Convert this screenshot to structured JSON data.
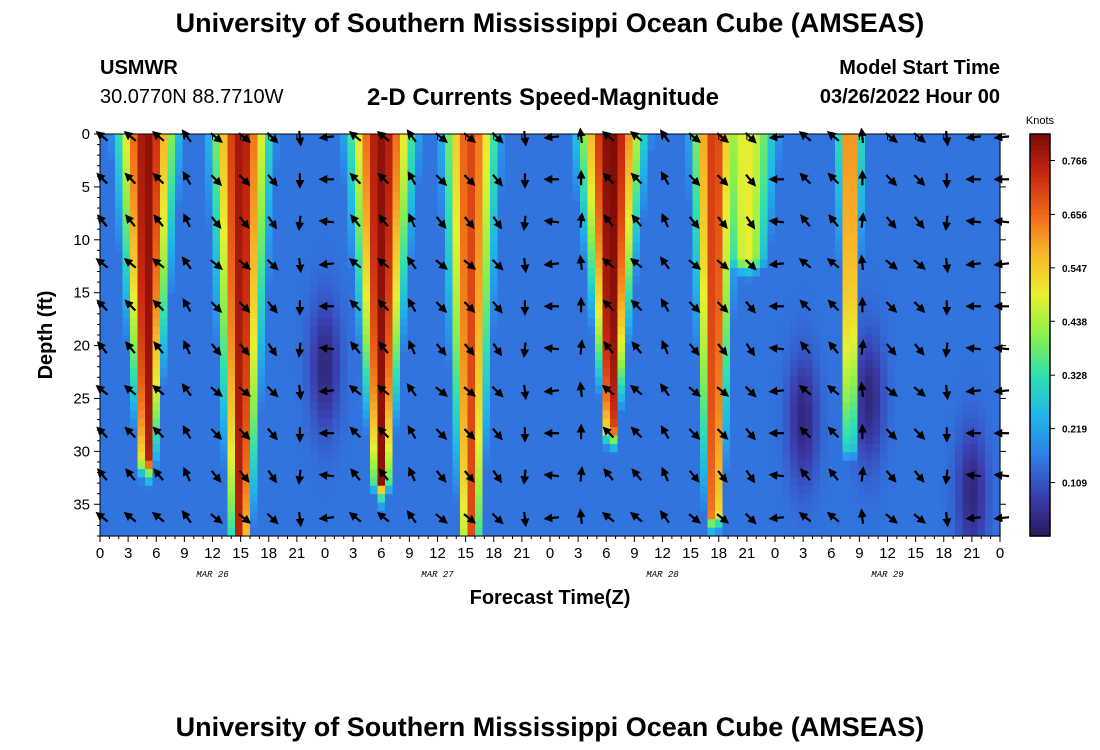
{
  "page": {
    "title": "University of Southern Mississippi Ocean Cube (AMSEAS)",
    "footer_title": "University of Southern Mississippi Ocean Cube (AMSEAS)",
    "station": "USMWR",
    "coordinates": "30.0770N  88.7710W",
    "subtitle": "2-D Currents Speed-Magnitude",
    "model_start_label": "Model Start Time",
    "model_start_value": "03/26/2022 Hour 00"
  },
  "chart_data": {
    "type": "heatmap",
    "title": "2-D Currents Speed-Magnitude",
    "xlabel": "Forecast Time(Z)",
    "ylabel": "Depth (ft)",
    "x_range_hours": [
      0,
      96
    ],
    "y_range_ft": [
      0,
      38
    ],
    "x_ticks": [
      {
        "hour": 0,
        "label": "0"
      },
      {
        "hour": 3,
        "label": "3"
      },
      {
        "hour": 6,
        "label": "6"
      },
      {
        "hour": 9,
        "label": "9"
      },
      {
        "hour": 12,
        "label": "12"
      },
      {
        "hour": 15,
        "label": "15"
      },
      {
        "hour": 18,
        "label": "18"
      },
      {
        "hour": 21,
        "label": "21"
      },
      {
        "hour": 24,
        "label": "0"
      },
      {
        "hour": 27,
        "label": "3"
      },
      {
        "hour": 30,
        "label": "6"
      },
      {
        "hour": 33,
        "label": "9"
      },
      {
        "hour": 36,
        "label": "12"
      },
      {
        "hour": 39,
        "label": "15"
      },
      {
        "hour": 42,
        "label": "18"
      },
      {
        "hour": 45,
        "label": "21"
      },
      {
        "hour": 48,
        "label": "0"
      },
      {
        "hour": 51,
        "label": "3"
      },
      {
        "hour": 54,
        "label": "6"
      },
      {
        "hour": 57,
        "label": "9"
      },
      {
        "hour": 60,
        "label": "12"
      },
      {
        "hour": 63,
        "label": "15"
      },
      {
        "hour": 66,
        "label": "18"
      },
      {
        "hour": 69,
        "label": "21"
      },
      {
        "hour": 72,
        "label": "0"
      },
      {
        "hour": 75,
        "label": "3"
      },
      {
        "hour": 78,
        "label": "6"
      },
      {
        "hour": 81,
        "label": "9"
      },
      {
        "hour": 84,
        "label": "12"
      },
      {
        "hour": 87,
        "label": "15"
      },
      {
        "hour": 90,
        "label": "18"
      },
      {
        "hour": 93,
        "label": "21"
      },
      {
        "hour": 96,
        "label": "0"
      }
    ],
    "y_ticks": [
      {
        "depth": 0,
        "label": "0"
      },
      {
        "depth": 5,
        "label": "5"
      },
      {
        "depth": 10,
        "label": "10"
      },
      {
        "depth": 15,
        "label": "15"
      },
      {
        "depth": 20,
        "label": "20"
      },
      {
        "depth": 25,
        "label": "25"
      },
      {
        "depth": 30,
        "label": "30"
      },
      {
        "depth": 35,
        "label": "35"
      }
    ],
    "month_labels": [
      {
        "hour": 12,
        "label": "MAR 26"
      },
      {
        "hour": 36,
        "label": "MAR 27"
      },
      {
        "hour": 60,
        "label": "MAR 28"
      },
      {
        "hour": 84,
        "label": "MAR 29"
      }
    ],
    "colorbar": {
      "unit": "Knots",
      "min": 0.0,
      "max": 0.82,
      "tick_values": [
        0.766,
        0.656,
        0.547,
        0.438,
        0.328,
        0.219,
        0.109
      ],
      "tick_labels": [
        "0.766",
        "0.656",
        "0.547",
        "0.438",
        "0.328",
        "0.219",
        "0.109"
      ],
      "colormap": [
        "#2b1a5c",
        "#3a3fb0",
        "#2f7fe8",
        "#1fb6e8",
        "#2fe0b0",
        "#8cf04a",
        "#e8f030",
        "#f8b828",
        "#f06818",
        "#c82810",
        "#7a0a04"
      ]
    },
    "speed_bands": [
      {
        "center_hour": 5.0,
        "half_width_hours": 3.6,
        "peak_knots": 0.8,
        "max_depth_ft": 31,
        "bottom_width_hours": 1.0
      },
      {
        "center_hour": 15.0,
        "half_width_hours": 3.6,
        "peak_knots": 0.78,
        "max_depth_ft": 38,
        "bottom_width_hours": 1.2
      },
      {
        "center_hour": 30.0,
        "half_width_hours": 4.0,
        "peak_knots": 0.8,
        "max_depth_ft": 33,
        "bottom_width_hours": 1.0
      },
      {
        "center_hour": 39.5,
        "half_width_hours": 3.4,
        "peak_knots": 0.7,
        "max_depth_ft": 38,
        "bottom_width_hours": 1.2
      },
      {
        "center_hour": 54.5,
        "half_width_hours": 4.0,
        "peak_knots": 0.82,
        "max_depth_ft": 28,
        "bottom_width_hours": 0.8
      },
      {
        "center_hour": 65.5,
        "half_width_hours": 2.8,
        "peak_knots": 0.72,
        "max_depth_ft": 36,
        "bottom_width_hours": 1.0
      },
      {
        "center_hour": 69.0,
        "half_width_hours": 4.0,
        "peak_knots": 0.5,
        "max_depth_ft": 12,
        "bottom_width_hours": 2.5
      },
      {
        "center_hour": 80.0,
        "half_width_hours": 1.6,
        "peak_knots": 0.66,
        "max_depth_ft": 30,
        "bottom_width_hours": 0.5
      }
    ],
    "background_knots": 0.15,
    "vector_grid": {
      "x_step_hours": 3,
      "depths_ft": [
        0,
        4,
        8,
        12,
        16,
        20,
        24,
        28,
        32,
        36
      ]
    },
    "current_direction_by_hour_deg": [
      {
        "hour": 0,
        "dir": 315
      },
      {
        "hour": 3,
        "dir": 315
      },
      {
        "hour": 6,
        "dir": 315
      },
      {
        "hour": 9,
        "dir": 330
      },
      {
        "hour": 12,
        "dir": 135
      },
      {
        "hour": 15,
        "dir": 135
      },
      {
        "hour": 18,
        "dir": 140
      },
      {
        "hour": 21,
        "dir": 180
      },
      {
        "hour": 24,
        "dir": 270
      },
      {
        "hour": 27,
        "dir": 315
      },
      {
        "hour": 30,
        "dir": 315
      },
      {
        "hour": 33,
        "dir": 330
      },
      {
        "hour": 36,
        "dir": 135
      },
      {
        "hour": 39,
        "dir": 135
      },
      {
        "hour": 42,
        "dir": 140
      },
      {
        "hour": 45,
        "dir": 180
      },
      {
        "hour": 48,
        "dir": 270
      },
      {
        "hour": 51,
        "dir": 0
      },
      {
        "hour": 54,
        "dir": 315
      },
      {
        "hour": 57,
        "dir": 315
      },
      {
        "hour": 60,
        "dir": 330
      },
      {
        "hour": 63,
        "dir": 135
      },
      {
        "hour": 66,
        "dir": 135
      },
      {
        "hour": 69,
        "dir": 140
      },
      {
        "hour": 72,
        "dir": 270
      },
      {
        "hour": 75,
        "dir": 315
      },
      {
        "hour": 78,
        "dir": 315
      },
      {
        "hour": 81,
        "dir": 0
      },
      {
        "hour": 84,
        "dir": 135
      },
      {
        "hour": 87,
        "dir": 135
      },
      {
        "hour": 90,
        "dir": 180
      },
      {
        "hour": 93,
        "dir": 270
      },
      {
        "hour": 96,
        "dir": 270
      }
    ]
  }
}
